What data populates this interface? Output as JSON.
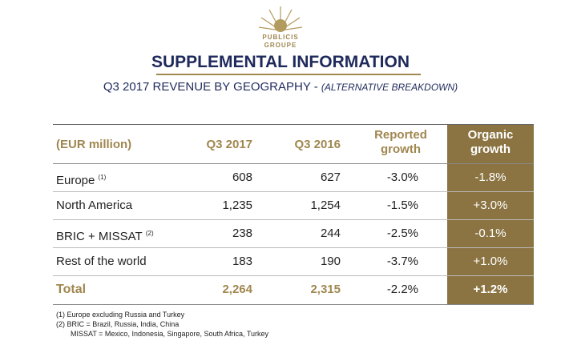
{
  "logo": {
    "line1": "PUBLICIS",
    "line2": "GROUPE"
  },
  "title": "SUPPLEMENTAL INFORMATION",
  "subtitle": {
    "main": "Q3 2017 REVENUE BY GEOGRAPHY - ",
    "italic": "(ALTERNATIVE BREAKDOWN)"
  },
  "table": {
    "header": [
      "(EUR million)",
      "Q3 2017",
      "Q3 2016",
      "Reported growth",
      "Organic growth"
    ],
    "rows": [
      {
        "label": "Europe",
        "note": "(1)",
        "cells": [
          "608",
          "627",
          "-3.0%",
          "-1.8%"
        ]
      },
      {
        "label": "North America",
        "cells": [
          "1,235",
          "1,254",
          "-1.5%",
          "+3.0%"
        ]
      },
      {
        "label": "BRIC + MISSAT",
        "note": "(2)",
        "cells": [
          "238",
          "244",
          "-2.5%",
          "-0.1%"
        ]
      },
      {
        "label": "Rest of the world",
        "cells": [
          "183",
          "190",
          "-3.7%",
          "+1.0%"
        ]
      }
    ],
    "total": {
      "label": "Total",
      "cells": [
        "2,264",
        "2,315",
        "-2.2%",
        "+1.2%"
      ]
    }
  },
  "footnotes": [
    "(1)  Europe excluding Russia and Turkey",
    "(2)  BRIC = Brazil, Russia, India, China",
    "MISSAT = Mexico, Indonesia, Singapore, South Africa, Turkey"
  ]
}
